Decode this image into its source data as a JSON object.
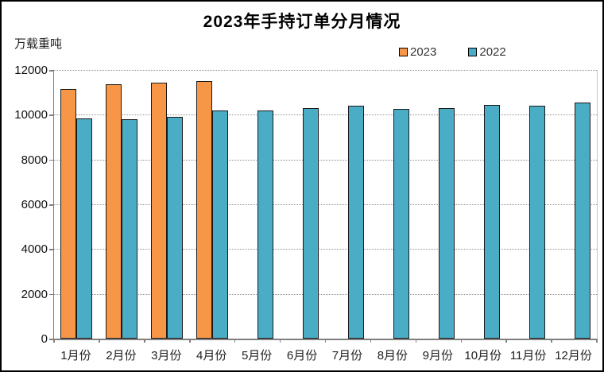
{
  "page": {
    "background": "#ffffff",
    "border_color": "#000000"
  },
  "chart_data": {
    "type": "bar",
    "title": "2023年手持订单分月情况",
    "unit_label": "万载重吨",
    "xlabel": "",
    "ylabel": "万载重吨",
    "categories": [
      "1月份",
      "2月份",
      "3月份",
      "4月份",
      "5月份",
      "6月份",
      "7月份",
      "8月份",
      "9月份",
      "10月份",
      "11月份",
      "12月份"
    ],
    "series": [
      {
        "name": "2023",
        "color": "#F79646",
        "values": [
          11150,
          11350,
          11450,
          11500,
          null,
          null,
          null,
          null,
          null,
          null,
          null,
          null
        ]
      },
      {
        "name": "2022",
        "color": "#4BACC6",
        "values": [
          9850,
          9800,
          9900,
          10200,
          10200,
          10300,
          10400,
          10250,
          10300,
          10450,
          10400,
          10550
        ]
      }
    ],
    "ylim": [
      0,
      12000
    ],
    "y_ticks": [
      0,
      2000,
      4000,
      6000,
      8000,
      10000,
      12000
    ],
    "grid": "horizontal-dotted",
    "legend_position": "top-right",
    "bar_border_color": "#1a1a1a"
  }
}
